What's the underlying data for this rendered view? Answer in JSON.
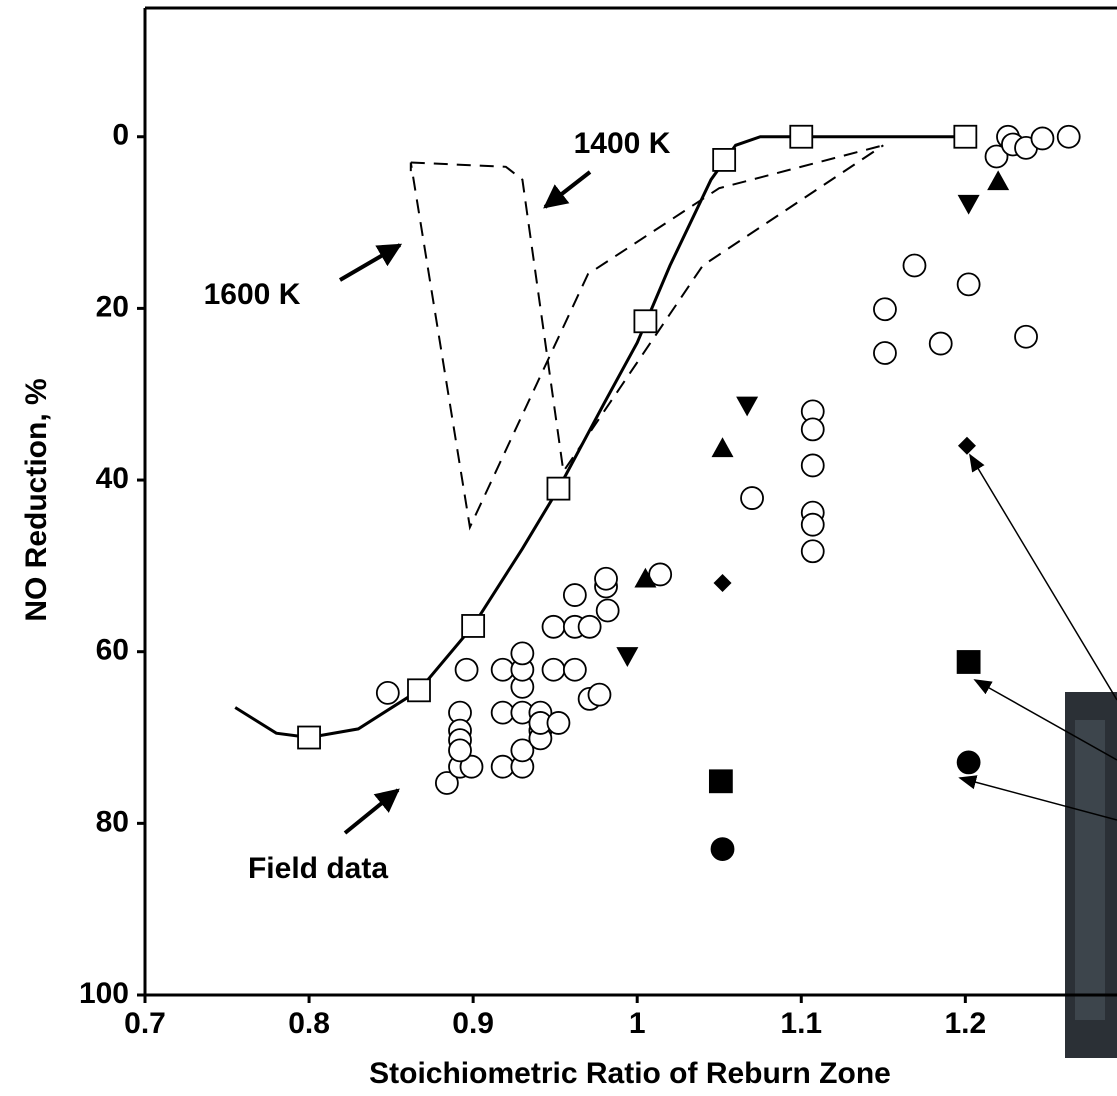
{
  "chart_data": {
    "type": "scatter",
    "x_label": "Stoichiometric Ratio of Reburn Zone",
    "y_label": "NO Reduction, %",
    "xlim": [
      0.7,
      1.29
    ],
    "ylim": [
      100,
      -15
    ],
    "xticks": [
      0.7,
      0.8,
      0.9,
      1,
      1.1,
      1.2
    ],
    "yticks": [
      0,
      20,
      40,
      60,
      80,
      100
    ],
    "annotations": [
      "1400 K",
      "1600 K",
      "Field data"
    ],
    "series": [
      {
        "type": "line",
        "color": "#000000",
        "dash": false,
        "x": [
          0.755,
          0.78,
          0.8,
          0.83,
          0.867,
          0.9,
          0.93,
          0.952,
          0.98,
          1.0,
          1.02,
          1.045,
          1.06,
          1.075,
          1.1,
          1.2
        ],
        "values": [
          66.5,
          69.5,
          70,
          69,
          64.5,
          57,
          48,
          41,
          31,
          24,
          15,
          5,
          1,
          0,
          0,
          0
        ]
      },
      {
        "type": "line",
        "color": "#000000",
        "dash": true,
        "x": [
          0.862,
          0.862,
          0.898,
          0.97,
          1.05,
          1.15
        ],
        "values": [
          4,
          3,
          45.5,
          16,
          6,
          1
        ]
      },
      {
        "type": "line",
        "color": "#000000",
        "dash": true,
        "x": [
          0.862,
          0.92,
          0.93,
          0.955,
          1.04,
          1.15
        ],
        "values": [
          3,
          3.5,
          5,
          39,
          15,
          1
        ]
      },
      {
        "type": "scatter",
        "marker": "open-square",
        "color": "#000000",
        "x": [
          0.8,
          0.867,
          0.9,
          0.952,
          1.005,
          1.053,
          1.1,
          1.2
        ],
        "values": [
          70,
          64.5,
          57,
          41,
          21.5,
          2.7,
          0,
          0
        ]
      },
      {
        "type": "scatter",
        "marker": "open-circle",
        "color": "#000000",
        "x": [
          0.848,
          0.884,
          0.892,
          0.899,
          0.892,
          0.892,
          0.892,
          0.892,
          0.896,
          0.918,
          0.918,
          0.918,
          0.93,
          0.93,
          0.93,
          0.93,
          0.93,
          0.93,
          0.941,
          0.941,
          0.941,
          0.941,
          0.949,
          0.952,
          0.949,
          0.962,
          0.962,
          0.962,
          0.971,
          0.971,
          0.977,
          0.982,
          0.981,
          0.981,
          1.014,
          1.07,
          1.107,
          1.107,
          1.107,
          1.107,
          1.107,
          1.107,
          1.151,
          1.151,
          1.169,
          1.185,
          1.202,
          1.237,
          1.219,
          1.226,
          1.229,
          1.237,
          1.247,
          1.263
        ],
        "values": [
          64.8,
          75.3,
          73.4,
          73.4,
          67.1,
          69.2,
          70.3,
          71.5,
          62.1,
          62.1,
          67.1,
          73.4,
          73.4,
          71.5,
          67.1,
          64.1,
          62.1,
          60.2,
          67.1,
          69.2,
          70.1,
          68.3,
          62.1,
          68.3,
          57.1,
          57.1,
          53.4,
          62.1,
          57.1,
          65.5,
          65.0,
          55.2,
          52.4,
          51.5,
          51.0,
          42.1,
          32.0,
          34.1,
          38.3,
          43.8,
          45.2,
          48.3,
          20.1,
          25.2,
          15.0,
          24.1,
          17.2,
          23.3,
          2.3,
          0,
          0.9,
          1.3,
          0.2,
          0
        ]
      },
      {
        "type": "scatter",
        "marker": "triangle-up",
        "color": "#000000",
        "x": [
          1.005,
          1.052,
          1.22
        ],
        "values": [
          51.5,
          36.3,
          5.2
        ]
      },
      {
        "type": "scatter",
        "marker": "triangle-down",
        "color": "#000000",
        "x": [
          0.994,
          1.067,
          1.202
        ],
        "values": [
          60.5,
          31.3,
          7.8
        ]
      },
      {
        "type": "scatter",
        "marker": "diamond",
        "color": "#000000",
        "x": [
          1.052,
          1.201
        ],
        "values": [
          52.0,
          36.0
        ]
      },
      {
        "type": "scatter",
        "marker": "square",
        "color": "#000000",
        "x": [
          1.051,
          1.202
        ],
        "values": [
          75.1,
          61.2
        ]
      },
      {
        "type": "scatter",
        "marker": "circle",
        "color": "#000000",
        "x": [
          1.052,
          1.202
        ],
        "values": [
          83.0,
          72.9
        ]
      }
    ]
  }
}
